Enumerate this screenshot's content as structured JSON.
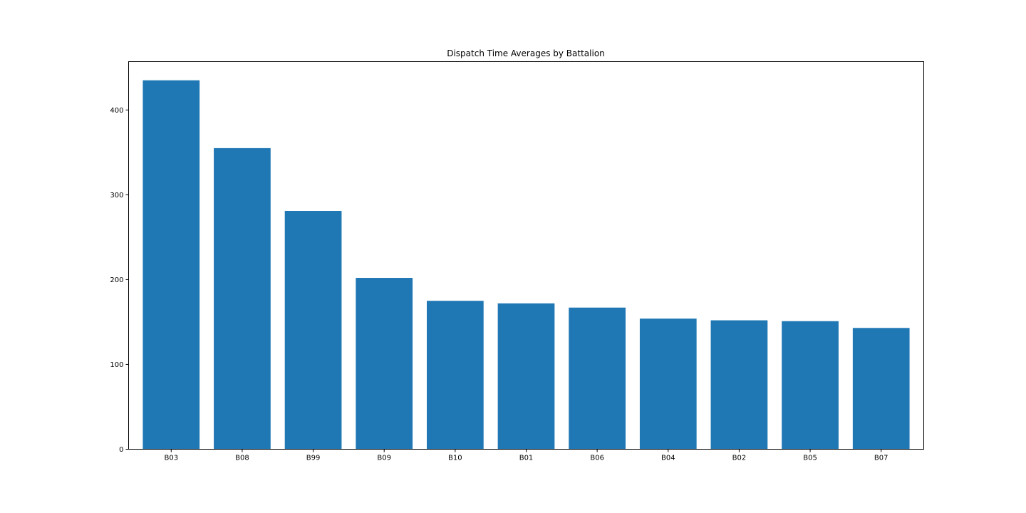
{
  "chart_data": {
    "type": "bar",
    "title": "Dispatch Time Averages by Battalion",
    "xlabel": "",
    "ylabel": "",
    "categories": [
      "B03",
      "B08",
      "B99",
      "B09",
      "B10",
      "B01",
      "B06",
      "B04",
      "B02",
      "B05",
      "B07"
    ],
    "values": [
      435,
      355,
      281,
      202,
      175,
      172,
      167,
      154,
      152,
      151,
      143
    ],
    "ylim": [
      0,
      457
    ],
    "yticks": [
      0,
      100,
      200,
      300,
      400
    ],
    "grid": false,
    "legend": "none",
    "bar_color": "#1f77b4"
  }
}
